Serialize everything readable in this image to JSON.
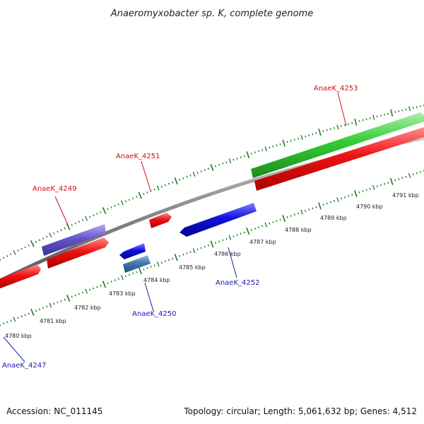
{
  "title": "Anaeromyxobacter sp. K, complete genome",
  "footer": {
    "accession": "Accession: NC_011145",
    "summary": "Topology: circular; Length: 5,061,632 bp; Genes: 4,512"
  },
  "colors": {
    "forward_label": "#cc1111",
    "reverse_label": "#1a1aaa",
    "backbone": "#888888",
    "tick": "#1a7a1a",
    "gene_red": "#ee1111",
    "gene_green": "#33cc33",
    "gene_blue": "#1111dd",
    "gene_purple": "#6655cc",
    "gene_steel": "#4477aa"
  },
  "ticks": [
    "4780 kbp",
    "4781 kbp",
    "4782 kbp",
    "4783 kbp",
    "4784 kbp",
    "4785 kbp",
    "4786 kbp",
    "4787 kbp",
    "4788 kbp",
    "4789 kbp",
    "4790 kbp",
    "4791 kbp"
  ],
  "genes": [
    {
      "label": "AnaeK_4247",
      "strand": "reverse"
    },
    {
      "label": "AnaeK_4249",
      "strand": "forward"
    },
    {
      "label": "AnaeK_4250",
      "strand": "reverse"
    },
    {
      "label": "AnaeK_4251",
      "strand": "forward"
    },
    {
      "label": "AnaeK_4252",
      "strand": "reverse"
    },
    {
      "label": "AnaeK_4253",
      "strand": "forward"
    }
  ]
}
